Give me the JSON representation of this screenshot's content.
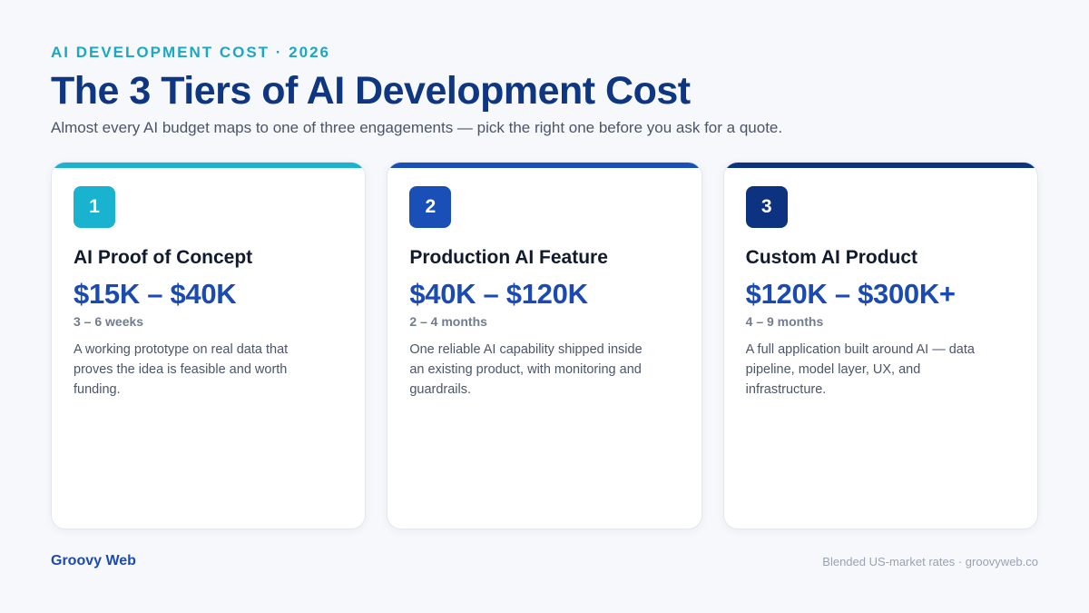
{
  "header": {
    "eyebrow": "AI DEVELOPMENT COST · 2026",
    "title": "The 3 Tiers of AI Development Cost",
    "subtitle": "Almost every AI budget maps to one of three engagements — pick the right one before you ask for a quote."
  },
  "tiers": [
    {
      "number": "1",
      "name": "AI Proof of Concept",
      "price": "$15K – $40K",
      "duration": "3 – 6 weeks",
      "description": "A working prototype on real data that proves the idea is feasible and worth funding.",
      "accent_color": "#19b3cf"
    },
    {
      "number": "2",
      "name": "Production AI Feature",
      "price": "$40K – $120K",
      "duration": "2 – 4 months",
      "description": "One reliable AI capability shipped inside an existing product, with monitoring and guardrails.",
      "accent_color": "#1a4fb8"
    },
    {
      "number": "3",
      "name": "Custom AI Product",
      "price": "$120K – $300K+",
      "duration": "4 – 9 months",
      "description": "A full application built around AI — data pipeline, model layer, UX, and infrastructure.",
      "accent_color": "#0d3380"
    }
  ],
  "footer": {
    "brand": "Groovy Web",
    "note": "Blended US-market rates · groovyweb.co"
  }
}
